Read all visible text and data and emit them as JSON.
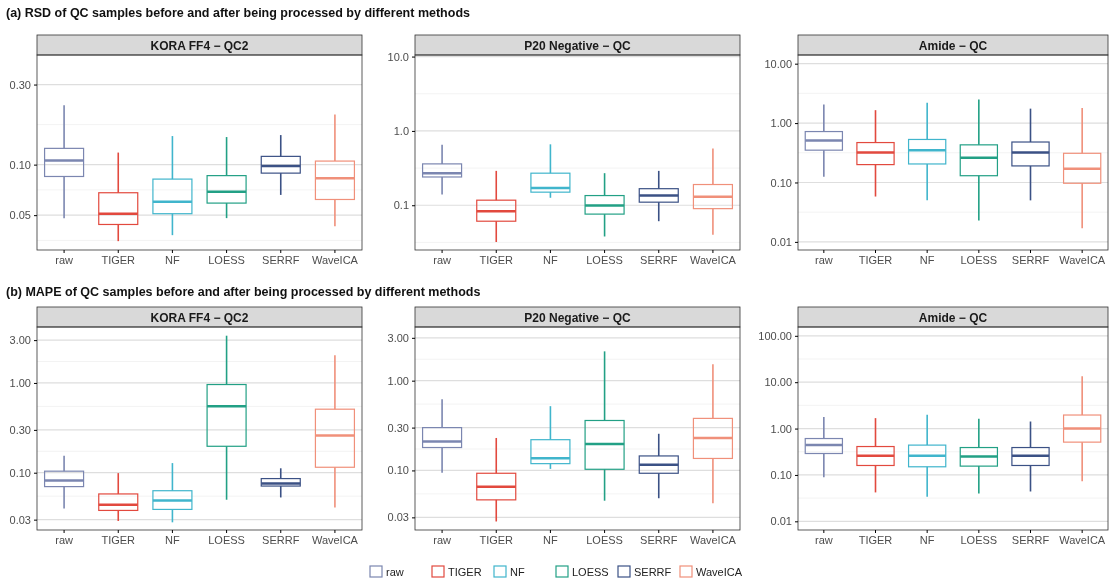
{
  "chart_data": [
    {
      "type": "box",
      "title": "KORA FF4 − QC2",
      "annotations": [
        "(a) RSD of QC samples before and after being processed by different methods"
      ],
      "log": true,
      "grid": true,
      "categories": [
        "raw",
        "TIGER",
        "NF",
        "LOESS",
        "SERRF",
        "WaveICA"
      ],
      "colors": [
        "#7b86b0",
        "#e2493e",
        "#40b5cc",
        "#22a085",
        "#3b5185",
        "#f0907a"
      ],
      "ylim": [
        0.031,
        0.45
      ],
      "yticks": [
        0.05,
        {
          "value": 0.1,
          "label": "0.10"
        },
        {
          "value": 0.3,
          "label": "0.30"
        }
      ],
      "boxes": [
        {
          "low": 0.048,
          "q1": 0.085,
          "median": 0.106,
          "q3": 0.125,
          "high": 0.226
        },
        {
          "low": 0.035,
          "q1": 0.044,
          "median": 0.051,
          "q3": 0.068,
          "high": 0.118
        },
        {
          "low": 0.038,
          "q1": 0.051,
          "median": 0.06,
          "q3": 0.082,
          "high": 0.148
        },
        {
          "low": 0.048,
          "q1": 0.059,
          "median": 0.069,
          "q3": 0.086,
          "high": 0.146
        },
        {
          "low": 0.066,
          "q1": 0.089,
          "median": 0.098,
          "q3": 0.112,
          "high": 0.15
        },
        {
          "low": 0.043,
          "q1": 0.062,
          "median": 0.083,
          "q3": 0.105,
          "high": 0.199
        }
      ]
    },
    {
      "type": "box",
      "title": "P20 Negative − QC",
      "log": true,
      "grid": true,
      "categories": [
        "raw",
        "TIGER",
        "NF",
        "LOESS",
        "SERRF",
        "WaveICA"
      ],
      "colors": [
        "#7b86b0",
        "#e2493e",
        "#40b5cc",
        "#22a085",
        "#3b5185",
        "#f0907a"
      ],
      "ylim": [
        0.025,
        10.5
      ],
      "yticks": [
        0.1,
        {
          "value": 1,
          "label": "1.0"
        },
        {
          "value": 10,
          "label": "10.0"
        }
      ],
      "boxes": [
        {
          "low": 0.14,
          "q1": 0.24,
          "median": 0.27,
          "q3": 0.36,
          "high": 0.65
        },
        {
          "low": 0.032,
          "q1": 0.061,
          "median": 0.083,
          "q3": 0.117,
          "high": 0.29
        },
        {
          "low": 0.126,
          "q1": 0.15,
          "median": 0.17,
          "q3": 0.27,
          "high": 0.66
        },
        {
          "low": 0.038,
          "q1": 0.076,
          "median": 0.099,
          "q3": 0.135,
          "high": 0.27
        },
        {
          "low": 0.061,
          "q1": 0.11,
          "median": 0.135,
          "q3": 0.167,
          "high": 0.29
        },
        {
          "low": 0.04,
          "q1": 0.09,
          "median": 0.13,
          "q3": 0.19,
          "high": 0.58
        }
      ]
    },
    {
      "type": "box",
      "title": "Amide − QC",
      "log": true,
      "grid": true,
      "categories": [
        "raw",
        "TIGER",
        "NF",
        "LOESS",
        "SERRF",
        "WaveICA"
      ],
      "colors": [
        "#7b86b0",
        "#e2493e",
        "#40b5cc",
        "#22a085",
        "#3b5185",
        "#f0907a"
      ],
      "ylim": [
        0.0073,
        14
      ],
      "yticks": [
        0.01,
        {
          "value": 0.1,
          "label": "0.10"
        },
        {
          "value": 1,
          "label": "1.00"
        },
        {
          "value": 10,
          "label": "10.00"
        }
      ],
      "boxes": [
        {
          "low": 0.125,
          "q1": 0.35,
          "median": 0.51,
          "q3": 0.72,
          "high": 2.05
        },
        {
          "low": 0.058,
          "q1": 0.2,
          "median": 0.32,
          "q3": 0.47,
          "high": 1.65
        },
        {
          "low": 0.05,
          "q1": 0.205,
          "median": 0.35,
          "q3": 0.53,
          "high": 2.2
        },
        {
          "low": 0.023,
          "q1": 0.13,
          "median": 0.26,
          "q3": 0.43,
          "high": 2.5
        },
        {
          "low": 0.05,
          "q1": 0.19,
          "median": 0.32,
          "q3": 0.48,
          "high": 1.75
        },
        {
          "low": 0.017,
          "q1": 0.097,
          "median": 0.17,
          "q3": 0.31,
          "high": 1.8
        }
      ]
    },
    {
      "type": "box",
      "title": "KORA FF4 − QC2",
      "annotations": [
        "(b) MAPE of QC samples before and after being processed by different methods"
      ],
      "log": true,
      "grid": true,
      "categories": [
        "raw",
        "TIGER",
        "NF",
        "LOESS",
        "SERRF",
        "WaveICA"
      ],
      "colors": [
        "#7b86b0",
        "#e2493e",
        "#40b5cc",
        "#22a085",
        "#3b5185",
        "#f0907a"
      ],
      "ylim": [
        0.023,
        4.2
      ],
      "yticks": [
        {
          "value": 0.03,
          "label": "0.03"
        },
        {
          "value": 0.1,
          "label": "0.10"
        },
        {
          "value": 0.3,
          "label": "0.30"
        },
        {
          "value": 1,
          "label": "1.00"
        },
        {
          "value": 3,
          "label": "3.00"
        }
      ],
      "boxes": [
        {
          "low": 0.04,
          "q1": 0.07,
          "median": 0.082,
          "q3": 0.104,
          "high": 0.154
        },
        {
          "low": 0.029,
          "q1": 0.038,
          "median": 0.044,
          "q3": 0.058,
          "high": 0.099
        },
        {
          "low": 0.028,
          "q1": 0.039,
          "median": 0.049,
          "q3": 0.063,
          "high": 0.128
        },
        {
          "low": 0.05,
          "q1": 0.197,
          "median": 0.55,
          "q3": 0.96,
          "high": 3.36
        },
        {
          "low": 0.053,
          "q1": 0.071,
          "median": 0.076,
          "q3": 0.086,
          "high": 0.112
        },
        {
          "low": 0.041,
          "q1": 0.115,
          "median": 0.26,
          "q3": 0.51,
          "high": 2.04
        }
      ]
    },
    {
      "type": "box",
      "title": "P20 Negative − QC",
      "log": true,
      "grid": true,
      "categories": [
        "raw",
        "TIGER",
        "NF",
        "LOESS",
        "SERRF",
        "WaveICA"
      ],
      "colors": [
        "#7b86b0",
        "#e2493e",
        "#40b5cc",
        "#22a085",
        "#3b5185",
        "#f0907a"
      ],
      "ylim": [
        0.0217,
        3.96
      ],
      "yticks": [
        {
          "value": 0.03,
          "label": "0.03"
        },
        {
          "value": 0.1,
          "label": "0.10"
        },
        {
          "value": 0.3,
          "label": "0.30"
        },
        {
          "value": 1,
          "label": "1.00"
        },
        {
          "value": 3,
          "label": "3.00"
        }
      ],
      "boxes": [
        {
          "low": 0.094,
          "q1": 0.18,
          "median": 0.21,
          "q3": 0.3,
          "high": 0.62
        },
        {
          "low": 0.027,
          "q1": 0.047,
          "median": 0.066,
          "q3": 0.093,
          "high": 0.23
        },
        {
          "low": 0.104,
          "q1": 0.119,
          "median": 0.137,
          "q3": 0.22,
          "high": 0.52
        },
        {
          "low": 0.046,
          "q1": 0.103,
          "median": 0.197,
          "q3": 0.36,
          "high": 2.12
        },
        {
          "low": 0.049,
          "q1": 0.093,
          "median": 0.116,
          "q3": 0.145,
          "high": 0.256
        },
        {
          "low": 0.043,
          "q1": 0.136,
          "median": 0.23,
          "q3": 0.38,
          "high": 1.52
        }
      ]
    },
    {
      "type": "box",
      "title": "Amide − QC",
      "log": true,
      "grid": true,
      "legend": "bottom",
      "categories": [
        "raw",
        "TIGER",
        "NF",
        "LOESS",
        "SERRF",
        "WaveICA"
      ],
      "ylim": [
        0.0065,
        155
      ],
      "yticks": [
        0.01,
        {
          "value": 0.1,
          "label": "0.10"
        },
        {
          "value": 1,
          "label": "1.00"
        },
        {
          "value": 10,
          "label": "10.00"
        },
        {
          "value": 100,
          "label": "100.00"
        }
      ],
      "series": [
        {
          "name": "raw",
          "color": "#7b86b0",
          "boxes": [
            {
              "low": 0.089,
              "q1": 0.29,
              "median": 0.44,
              "q3": 0.61,
              "high": 1.77
            },
            null,
            null,
            null,
            null,
            null
          ]
        },
        {
          "name": "TIGER",
          "color": "#e2493e",
          "boxes": [
            null,
            {
              "low": 0.042,
              "q1": 0.16,
              "median": 0.26,
              "q3": 0.41,
              "high": 1.68
            },
            null,
            null,
            null,
            null
          ]
        },
        {
          "name": "NF",
          "color": "#40b5cc",
          "boxes": [
            null,
            null,
            {
              "low": 0.034,
              "q1": 0.15,
              "median": 0.26,
              "q3": 0.44,
              "high": 1.99
            },
            null,
            null,
            null
          ]
        },
        {
          "name": "LOESS",
          "color": "#22a085",
          "boxes": [
            null,
            null,
            null,
            {
              "low": 0.04,
              "q1": 0.155,
              "median": 0.25,
              "q3": 0.39,
              "high": 1.63
            },
            null,
            null
          ]
        },
        {
          "name": "SERRF",
          "color": "#3b5185",
          "boxes": [
            null,
            null,
            null,
            null,
            {
              "low": 0.044,
              "q1": 0.16,
              "median": 0.26,
              "q3": 0.39,
              "high": 1.42
            },
            null
          ]
        },
        {
          "name": "WaveICA",
          "color": "#f0907a",
          "boxes": [
            null,
            null,
            null,
            null,
            null,
            {
              "low": 0.073,
              "q1": 0.51,
              "median": 1.0,
              "q3": 1.96,
              "high": 13.5
            }
          ]
        }
      ]
    }
  ]
}
